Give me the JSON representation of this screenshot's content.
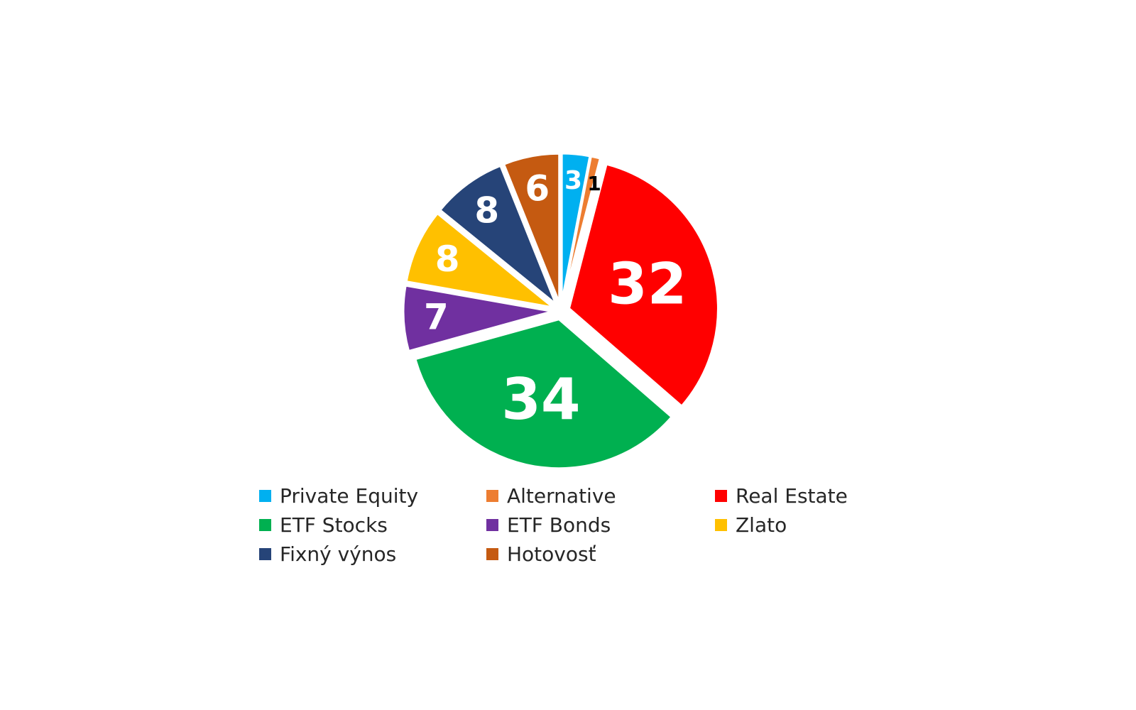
{
  "chart_data": {
    "type": "pie",
    "title": "",
    "categories": [
      "Private Equity",
      "Alternative",
      "Real Estate",
      "ETF Stocks",
      "ETF Bonds",
      "Zlato",
      "Fixný výnos",
      "Hotovosť"
    ],
    "values": [
      3,
      1,
      32,
      34,
      7,
      8,
      8,
      6
    ],
    "colors": [
      "#00B0F0",
      "#ED7D31",
      "#FF0000",
      "#00B050",
      "#7030A0",
      "#FFC000",
      "#264478",
      "#C55A11"
    ],
    "label_colors": [
      "#ffffff",
      "#000000",
      "#ffffff",
      "#ffffff",
      "#ffffff",
      "#ffffff",
      "#ffffff",
      "#ffffff"
    ],
    "exploded": true,
    "start_angle": "12 o'clock",
    "direction": "clockwise",
    "legend_position": "bottom"
  }
}
